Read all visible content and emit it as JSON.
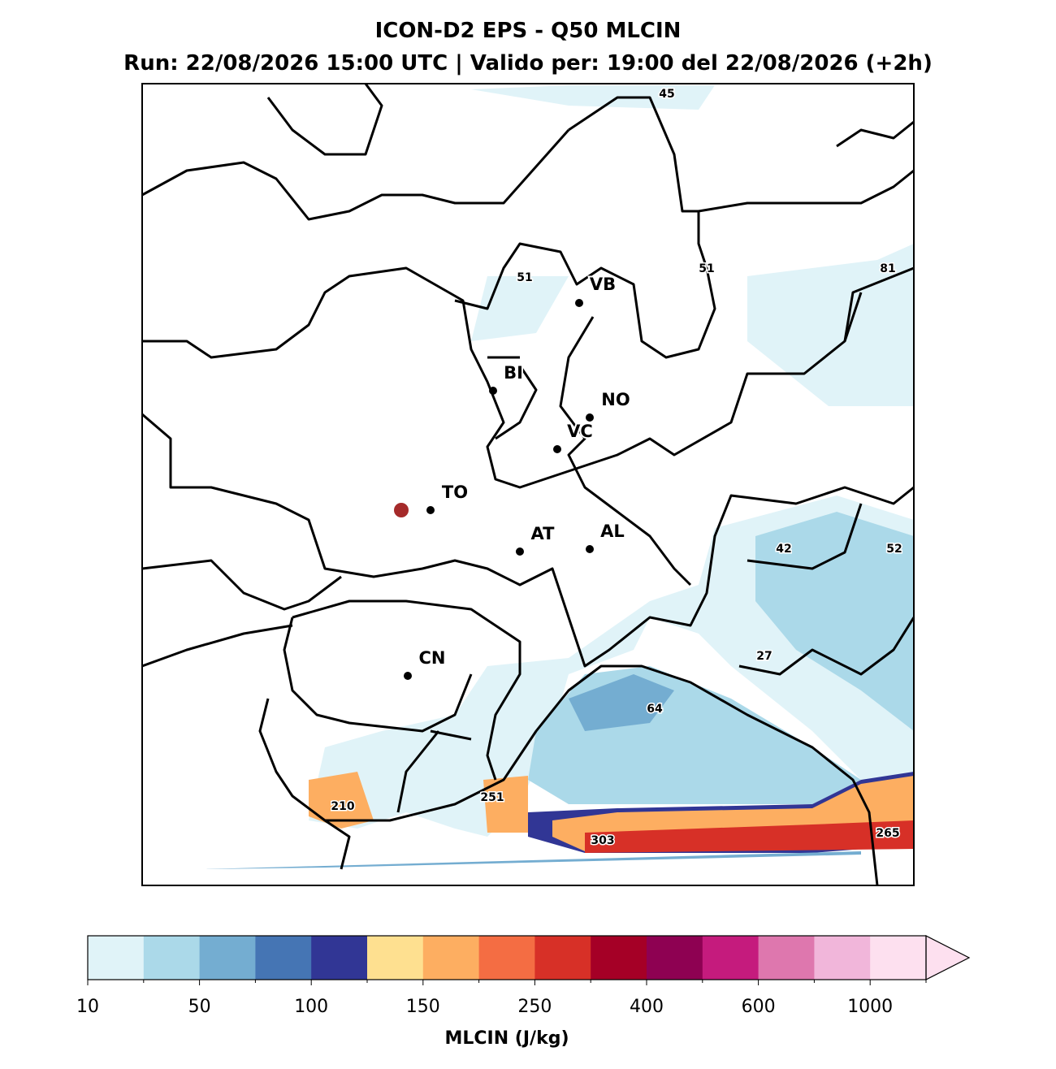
{
  "header": {
    "title": "ICON-D2 EPS - Q50 MLCIN",
    "subtitle": "Run: 22/08/2026 15:00 UTC | Valido per: 19:00 del 22/08/2026 (+2h)"
  },
  "map": {
    "cities": [
      {
        "label": "VB"
      },
      {
        "label": "BI"
      },
      {
        "label": "NO"
      },
      {
        "label": "VC"
      },
      {
        "label": "TO"
      },
      {
        "label": "AT"
      },
      {
        "label": "AL"
      },
      {
        "label": "CN"
      }
    ],
    "contour_labels": [
      45,
      51,
      51,
      81,
      42,
      52,
      27,
      64,
      251,
      210,
      303,
      265
    ]
  },
  "colorbar": {
    "label": "MLCIN (J/kg)",
    "ticks": [
      "10",
      "50",
      "100",
      "150",
      "250",
      "400",
      "600",
      "1000"
    ],
    "colors": [
      "#e0f3f8",
      "#abd9e9",
      "#74add1",
      "#4575b4",
      "#313695",
      "#fee090",
      "#fdae61",
      "#f46d43",
      "#d73027",
      "#a50026",
      "#8e0152",
      "#c51b7d",
      "#de77ae",
      "#f1b6da",
      "#fde0ef"
    ]
  }
}
